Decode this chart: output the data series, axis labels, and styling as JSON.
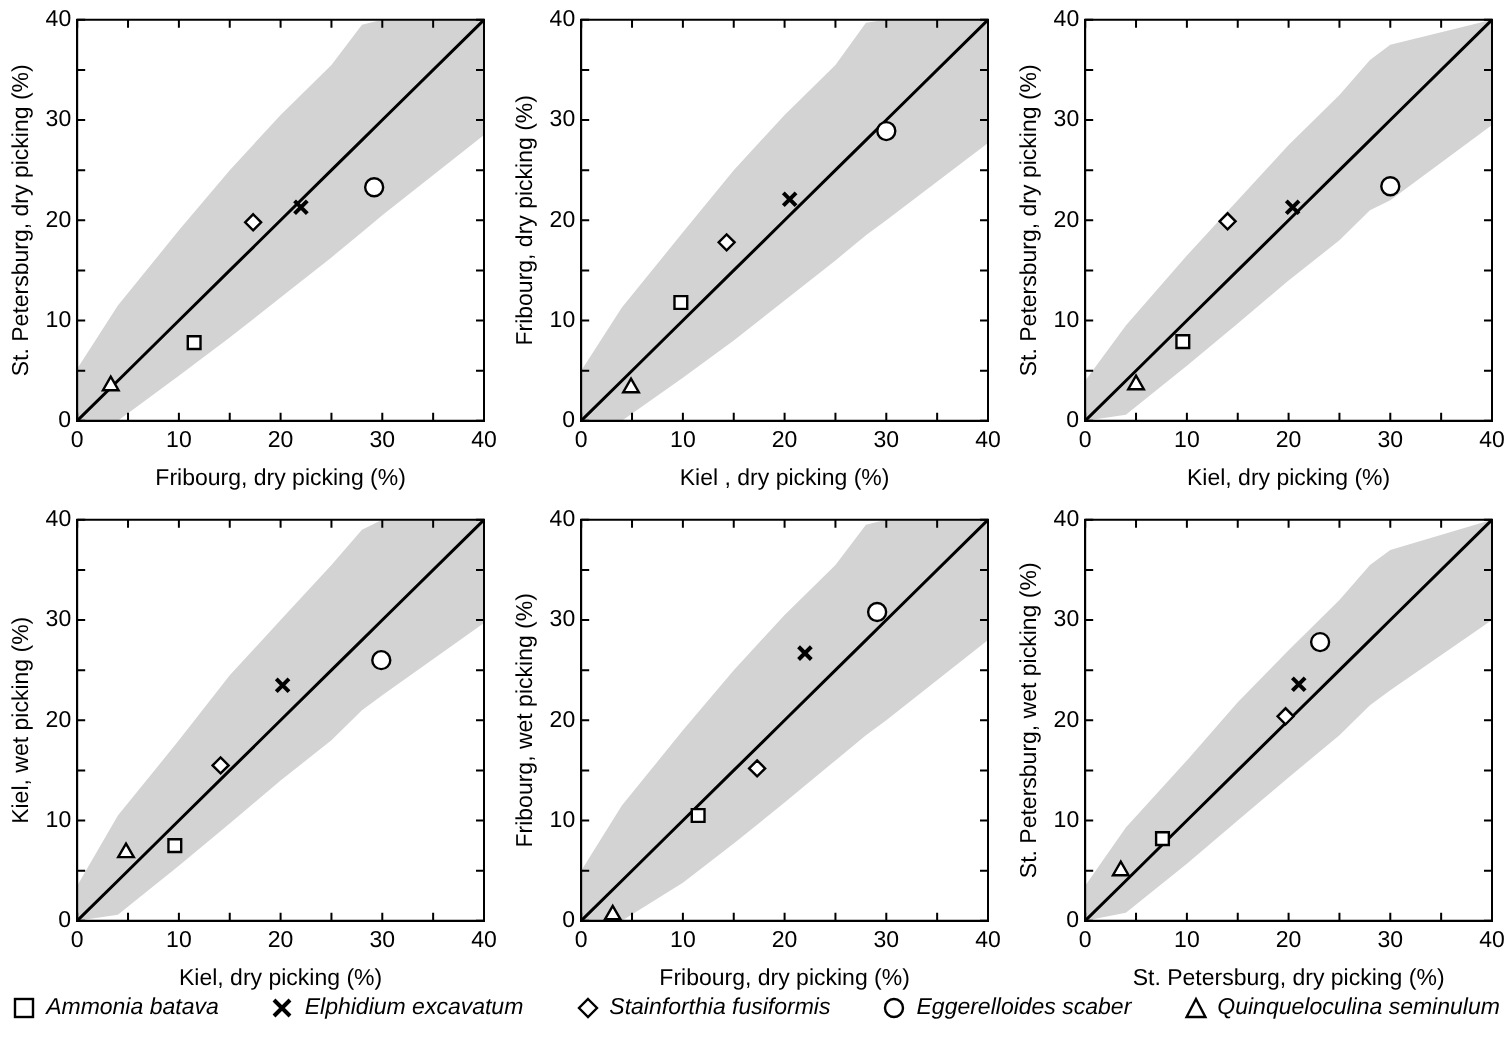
{
  "chart_data": [
    {
      "type": "scatter",
      "xlabel": "Fribourg, dry picking (%)",
      "ylabel": "St. Petersburg, dry picking (%)",
      "xlim": [
        0,
        40
      ],
      "ylim": [
        0,
        40
      ],
      "xticks": [
        0,
        {
          "value": 5,
          "label": null
        },
        10,
        {
          "value": 15,
          "label": null
        },
        20,
        {
          "value": 25,
          "label": null
        },
        30,
        {
          "value": 35,
          "label": null
        },
        40
      ],
      "yticks": [
        0,
        {
          "value": 5,
          "label": null
        },
        10,
        {
          "value": 15,
          "label": null
        },
        20,
        {
          "value": 25,
          "label": null
        },
        30,
        {
          "value": 35,
          "label": null
        },
        40
      ],
      "legend": "bottom",
      "series": [
        {
          "type": "line",
          "color": "#000000",
          "marker": "none",
          "x": [
            0,
            4,
            10,
            15,
            20,
            25,
            28,
            30,
            40
          ],
          "values": [
            0,
            4,
            10,
            15,
            20,
            25,
            28,
            30,
            40
          ],
          "lower": [
            0,
            0,
            4.5,
            8.3,
            12.3,
            16.3,
            18.8,
            20.5,
            28.5
          ],
          "upper": [
            5.2,
            11.5,
            19,
            25,
            30.5,
            35.5,
            39.5,
            40,
            40
          ]
        },
        {
          "name": "Ammonia batava",
          "color": "#000000",
          "marker": "square",
          "x": [
            11.5
          ],
          "values": [
            7.8
          ]
        },
        {
          "name": "Elphidium excavatum",
          "color": "#000000",
          "marker": "cross",
          "x": [
            22
          ],
          "values": [
            21.3
          ]
        },
        {
          "name": "Stainforthia fusiformis",
          "color": "#000000",
          "marker": "diamond",
          "x": [
            17.3
          ],
          "values": [
            19.8
          ]
        },
        {
          "name": "Eggerelloides scaber",
          "color": "#000000",
          "marker": "circle",
          "x": [
            29.2
          ],
          "values": [
            23.3
          ]
        },
        {
          "name": "Quinqueloculina seminulum",
          "color": "#000000",
          "marker": "triangle",
          "x": [
            3.3
          ],
          "values": [
            3.5
          ]
        }
      ]
    },
    {
      "type": "scatter",
      "xlabel": "Kiel , dry picking (%)",
      "ylabel": "Fribourg, dry picking (%)",
      "xlim": [
        0,
        40
      ],
      "ylim": [
        0,
        40
      ],
      "xticks": [
        0,
        {
          "value": 5,
          "label": null
        },
        10,
        {
          "value": 15,
          "label": null
        },
        20,
        {
          "value": 25,
          "label": null
        },
        30,
        {
          "value": 35,
          "label": null
        },
        40
      ],
      "yticks": [
        0,
        {
          "value": 5,
          "label": null
        },
        10,
        {
          "value": 15,
          "label": null
        },
        20,
        {
          "value": 25,
          "label": null
        },
        30,
        {
          "value": 35,
          "label": null
        },
        40
      ],
      "series": [
        {
          "type": "line",
          "color": "#000000",
          "marker": "none",
          "x": [
            0,
            4,
            10,
            15,
            20,
            25,
            28,
            30,
            40
          ],
          "values": [
            0,
            4,
            10,
            15,
            20,
            25,
            28,
            30,
            40
          ],
          "lower": [
            0,
            0,
            4.3,
            8,
            12,
            16,
            18.5,
            20,
            27.7
          ],
          "upper": [
            5,
            11.3,
            18.8,
            25,
            30.5,
            35.5,
            39.7,
            40,
            40
          ]
        },
        {
          "color": "#000000",
          "marker": "square",
          "x": [
            9.8
          ],
          "values": [
            11.8
          ]
        },
        {
          "color": "#000000",
          "marker": "cross",
          "x": [
            20.5
          ],
          "values": [
            22.1
          ]
        },
        {
          "color": "#000000",
          "marker": "diamond",
          "x": [
            14.3
          ],
          "values": [
            17.8
          ]
        },
        {
          "color": "#000000",
          "marker": "circle",
          "x": [
            30
          ],
          "values": [
            28.9
          ]
        },
        {
          "color": "#000000",
          "marker": "triangle",
          "x": [
            4.9
          ],
          "values": [
            3.3
          ]
        }
      ]
    },
    {
      "type": "scatter",
      "xlabel": "Kiel, dry picking (%)",
      "ylabel": "St. Petersburg, dry picking (%)",
      "xlim": [
        0,
        40
      ],
      "ylim": [
        0,
        40
      ],
      "xticks": [
        0,
        {
          "value": 5,
          "label": null
        },
        10,
        {
          "value": 15,
          "label": null
        },
        20,
        {
          "value": 25,
          "label": null
        },
        30,
        {
          "value": 35,
          "label": null
        },
        40
      ],
      "yticks": [
        0,
        {
          "value": 5,
          "label": null
        },
        10,
        {
          "value": 15,
          "label": null
        },
        20,
        {
          "value": 25,
          "label": null
        },
        30,
        {
          "value": 35,
          "label": null
        },
        40
      ],
      "series": [
        {
          "type": "line",
          "color": "#000000",
          "marker": "none",
          "x": [
            0,
            4,
            10,
            15,
            20,
            25,
            28,
            30,
            40
          ],
          "values": [
            0,
            4,
            10,
            15,
            20,
            25,
            28,
            30,
            40
          ],
          "lower": [
            0,
            0.6,
            5.5,
            9.7,
            14,
            18,
            21,
            22,
            29.5
          ],
          "upper": [
            4,
            9.5,
            16.5,
            22,
            27.5,
            32.5,
            36,
            37.5,
            40
          ]
        },
        {
          "color": "#000000",
          "marker": "square",
          "x": [
            9.6
          ],
          "values": [
            7.9
          ]
        },
        {
          "color": "#000000",
          "marker": "cross",
          "x": [
            20.4
          ],
          "values": [
            21.3
          ]
        },
        {
          "color": "#000000",
          "marker": "diamond",
          "x": [
            14
          ],
          "values": [
            19.9
          ]
        },
        {
          "color": "#000000",
          "marker": "circle",
          "x": [
            30
          ],
          "values": [
            23.4
          ]
        },
        {
          "color": "#000000",
          "marker": "triangle",
          "x": [
            5
          ],
          "values": [
            3.6
          ]
        }
      ]
    },
    {
      "type": "scatter",
      "xlabel": "Kiel, dry picking (%)",
      "ylabel": "Kiel, wet picking (%)",
      "xlim": [
        0,
        40
      ],
      "ylim": [
        0,
        40
      ],
      "xticks": [
        0,
        {
          "value": 5,
          "label": null
        },
        10,
        {
          "value": 15,
          "label": null
        },
        20,
        {
          "value": 25,
          "label": null
        },
        30,
        {
          "value": 35,
          "label": null
        },
        40
      ],
      "yticks": [
        0,
        {
          "value": 5,
          "label": null
        },
        10,
        {
          "value": 15,
          "label": null
        },
        20,
        {
          "value": 25,
          "label": null
        },
        30,
        {
          "value": 35,
          "label": null
        },
        40
      ],
      "series": [
        {
          "type": "line",
          "color": "#000000",
          "marker": "none",
          "x": [
            0,
            4,
            10,
            15,
            20,
            25,
            28,
            30,
            40
          ],
          "values": [
            0,
            4,
            10,
            15,
            20,
            25,
            28,
            30,
            40
          ],
          "lower": [
            0,
            0.6,
            5.5,
            9.7,
            14,
            18,
            21,
            22.5,
            29.7
          ],
          "upper": [
            3.5,
            10.5,
            18,
            24.5,
            30,
            35.5,
            39,
            40,
            40
          ]
        },
        {
          "color": "#000000",
          "marker": "square",
          "x": [
            9.6
          ],
          "values": [
            7.5
          ]
        },
        {
          "color": "#000000",
          "marker": "cross",
          "x": [
            20.2
          ],
          "values": [
            23.5
          ]
        },
        {
          "color": "#000000",
          "marker": "diamond",
          "x": [
            14.1
          ],
          "values": [
            15.5
          ]
        },
        {
          "color": "#000000",
          "marker": "circle",
          "x": [
            29.9
          ],
          "values": [
            26
          ]
        },
        {
          "color": "#000000",
          "marker": "triangle",
          "x": [
            4.8
          ],
          "values": [
            6.8
          ]
        }
      ]
    },
    {
      "type": "scatter",
      "xlabel": "Fribourg, dry picking (%)",
      "ylabel": "Fribourg, wet picking (%)",
      "xlim": [
        0,
        40
      ],
      "ylim": [
        0,
        40
      ],
      "xticks": [
        0,
        {
          "value": 5,
          "label": null
        },
        10,
        {
          "value": 15,
          "label": null
        },
        20,
        {
          "value": 25,
          "label": null
        },
        30,
        {
          "value": 35,
          "label": null
        },
        40
      ],
      "yticks": [
        0,
        {
          "value": 5,
          "label": null
        },
        10,
        {
          "value": 15,
          "label": null
        },
        20,
        {
          "value": 25,
          "label": null
        },
        30,
        {
          "value": 35,
          "label": null
        },
        40
      ],
      "series": [
        {
          "type": "line",
          "color": "#000000",
          "marker": "none",
          "x": [
            0,
            4,
            10,
            15,
            20,
            25,
            28,
            30,
            40
          ],
          "values": [
            0,
            4,
            10,
            15,
            20,
            25,
            28,
            30,
            40
          ],
          "lower": [
            0,
            0,
            3.8,
            7.7,
            11.8,
            16,
            18.5,
            20,
            28
          ],
          "upper": [
            5,
            11.5,
            19,
            25,
            30.5,
            35.5,
            39.5,
            40,
            40
          ]
        },
        {
          "color": "#000000",
          "marker": "square",
          "x": [
            11.5
          ],
          "values": [
            10.5
          ]
        },
        {
          "color": "#000000",
          "marker": "cross",
          "x": [
            22
          ],
          "values": [
            26.7
          ]
        },
        {
          "color": "#000000",
          "marker": "diamond",
          "x": [
            17.3
          ],
          "values": [
            15.2
          ]
        },
        {
          "color": "#000000",
          "marker": "circle",
          "x": [
            29.1
          ],
          "values": [
            30.8
          ]
        },
        {
          "color": "#000000",
          "marker": "triangle",
          "x": [
            3.1
          ],
          "values": [
            0.6
          ]
        }
      ]
    },
    {
      "type": "scatter",
      "xlabel": "St. Petersburg, dry picking (%)",
      "ylabel": "St. Petersburg, wet picking (%)",
      "xlim": [
        0,
        40
      ],
      "ylim": [
        0,
        40
      ],
      "xticks": [
        0,
        {
          "value": 5,
          "label": null
        },
        10,
        {
          "value": 15,
          "label": null
        },
        20,
        {
          "value": 25,
          "label": null
        },
        30,
        {
          "value": 35,
          "label": null
        },
        40
      ],
      "yticks": [
        0,
        {
          "value": 5,
          "label": null
        },
        10,
        {
          "value": 15,
          "label": null
        },
        20,
        {
          "value": 25,
          "label": null
        },
        30,
        {
          "value": 35,
          "label": null
        },
        40
      ],
      "series": [
        {
          "type": "line",
          "color": "#000000",
          "marker": "none",
          "x": [
            0,
            4,
            10,
            15,
            20,
            25,
            28,
            30,
            40
          ],
          "values": [
            0,
            4,
            10,
            15,
            20,
            25,
            28,
            30,
            40
          ],
          "lower": [
            0,
            0.8,
            5.7,
            10,
            14.3,
            18.5,
            21.5,
            23,
            30
          ],
          "upper": [
            3.5,
            9.3,
            16,
            21.8,
            27,
            32,
            35.5,
            37,
            40
          ]
        },
        {
          "color": "#000000",
          "marker": "square",
          "x": [
            7.6
          ],
          "values": [
            8.2
          ]
        },
        {
          "color": "#000000",
          "marker": "cross",
          "x": [
            21
          ],
          "values": [
            23.6
          ]
        },
        {
          "color": "#000000",
          "marker": "diamond",
          "x": [
            19.7
          ],
          "values": [
            20.4
          ]
        },
        {
          "color": "#000000",
          "marker": "circle",
          "x": [
            23.1
          ],
          "values": [
            27.8
          ]
        },
        {
          "color": "#000000",
          "marker": "triangle",
          "x": [
            3.5
          ],
          "values": [
            5
          ]
        }
      ]
    }
  ]
}
